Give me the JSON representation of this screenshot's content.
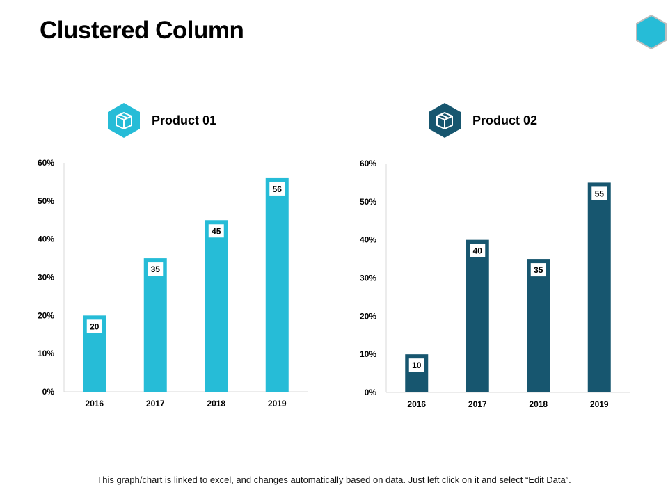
{
  "slide": {
    "title": "Clustered Column",
    "footer": "This graph/chart is linked to excel, and changes automatically based on data. Just left click on it and select “Edit Data”."
  },
  "icons": {
    "corner": "hexagon-icon",
    "product": "box-icon"
  },
  "colors": {
    "product1": "#26BCD7",
    "product2": "#17566F",
    "corner_fill": "#26BCD7",
    "corner_stroke": "#BDBDBD",
    "axis": "#D9D9D9"
  },
  "chart_data": [
    {
      "type": "bar",
      "title": "Product 01",
      "categories": [
        "2016",
        "2017",
        "2018",
        "2019"
      ],
      "values": [
        20,
        35,
        45,
        56
      ],
      "data_labels": [
        "20",
        "35",
        "45",
        "56"
      ],
      "ylim": [
        0,
        60
      ],
      "yticks": [
        "0%",
        "10%",
        "20%",
        "30%",
        "40%",
        "50%",
        "60%"
      ],
      "xlabel": "",
      "ylabel": "",
      "grid": false
    },
    {
      "type": "bar",
      "title": "Product 02",
      "categories": [
        "2016",
        "2017",
        "2018",
        "2019"
      ],
      "values": [
        10,
        40,
        35,
        55
      ],
      "data_labels": [
        "10",
        "40",
        "35",
        "55"
      ],
      "ylim": [
        0,
        60
      ],
      "yticks": [
        "0%",
        "10%",
        "20%",
        "30%",
        "40%",
        "50%",
        "60%"
      ],
      "xlabel": "",
      "ylabel": "",
      "grid": false
    }
  ]
}
